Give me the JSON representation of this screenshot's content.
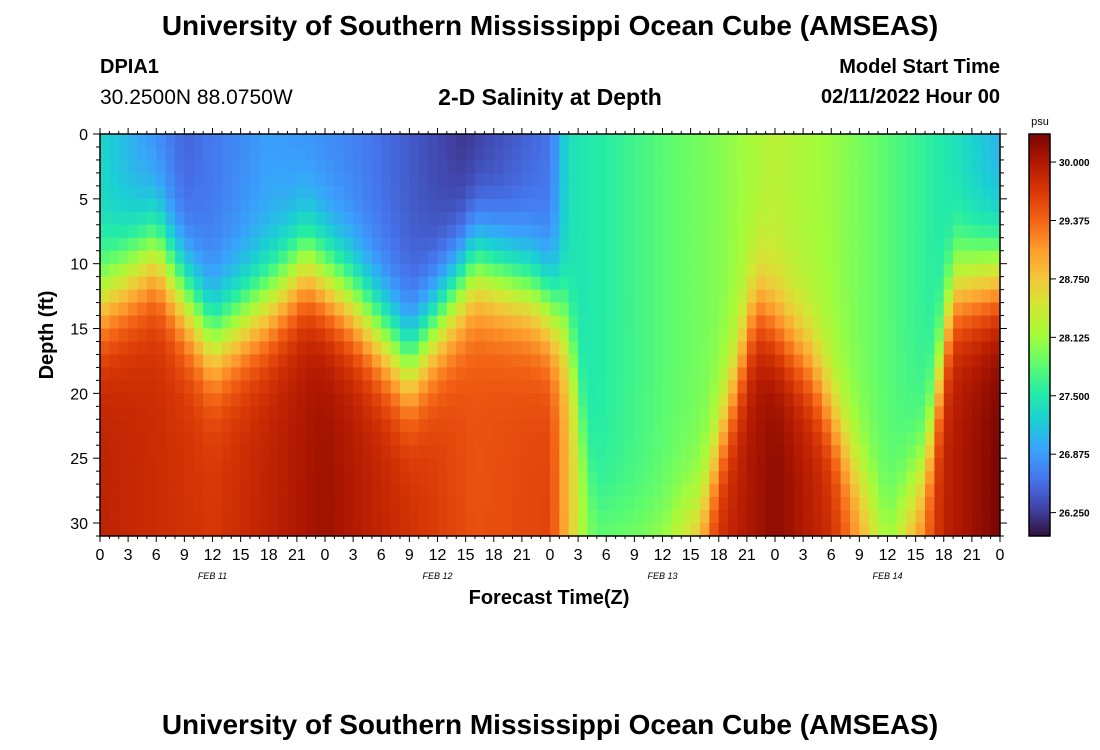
{
  "header": {
    "title": "University of Southern Mississippi Ocean Cube (AMSEAS)",
    "station": "DPIA1",
    "location": "30.2500N  88.0750W",
    "subtitle": "2-D Salinity at Depth",
    "model_start_label": "Model Start Time",
    "model_start_value": "02/11/2022 Hour 00"
  },
  "footer": {
    "title": "University of Southern Mississippi Ocean Cube (AMSEAS)"
  },
  "chart_data": {
    "type": "heatmap",
    "title": "2-D Salinity at Depth",
    "xlabel": "Forecast Time(Z)",
    "ylabel": "Depth (ft)",
    "colorbar_label": "psu",
    "x_range": [
      0,
      96
    ],
    "x_step_hours": 3,
    "x_tick_labels": [
      "0",
      "3",
      "6",
      "9",
      "12",
      "15",
      "18",
      "21",
      "0",
      "3",
      "6",
      "9",
      "12",
      "15",
      "18",
      "21",
      "0",
      "3",
      "6",
      "9",
      "12",
      "15",
      "18",
      "21",
      "0",
      "3",
      "6",
      "9",
      "12",
      "15",
      "18",
      "21",
      "0"
    ],
    "date_labels": [
      {
        "label": "FEB 11",
        "hour": 12
      },
      {
        "label": "FEB 12",
        "hour": 36
      },
      {
        "label": "FEB 13",
        "hour": 60
      },
      {
        "label": "FEB 14",
        "hour": 84
      }
    ],
    "y_range": [
      0,
      31
    ],
    "y_ticks": [
      0,
      5,
      10,
      15,
      20,
      25,
      30
    ],
    "color_range": [
      26.0,
      30.3
    ],
    "colorbar_ticks": [
      "26.250",
      "26.875",
      "27.500",
      "28.125",
      "28.750",
      "29.375",
      "30.000"
    ],
    "colormap": [
      "#30123b",
      "#4145ab",
      "#4675ed",
      "#39a2fc",
      "#1bcfd4",
      "#24eca6",
      "#61fc6c",
      "#a4fc3b",
      "#d1e834",
      "#f3c63a",
      "#fe9b2d",
      "#f36315",
      "#d93806",
      "#b11901",
      "#7a0402"
    ],
    "halocline_depth_ft": [
      {
        "hour": 0,
        "depth": 13
      },
      {
        "hour": 6,
        "depth": 9
      },
      {
        "hour": 12,
        "depth": 16
      },
      {
        "hour": 18,
        "depth": 13
      },
      {
        "hour": 22,
        "depth": 10
      },
      {
        "hour": 27,
        "depth": 13
      },
      {
        "hour": 33,
        "depth": 18
      },
      {
        "hour": 40,
        "depth": 10
      },
      {
        "hour": 46,
        "depth": 12
      },
      {
        "hour": 50,
        "depth": 15
      },
      {
        "hour": 53,
        "depth": 30
      },
      {
        "hour": 58,
        "depth": 31
      },
      {
        "hour": 64,
        "depth": 30
      },
      {
        "hour": 70,
        "depth": 13
      },
      {
        "hour": 76,
        "depth": 18
      },
      {
        "hour": 80,
        "depth": 25
      },
      {
        "hour": 84,
        "depth": 31
      },
      {
        "hour": 88,
        "depth": 26
      },
      {
        "hour": 91,
        "depth": 12
      },
      {
        "hour": 96,
        "depth": 11
      }
    ],
    "surface_salinity_psu": [
      {
        "hour": 0,
        "value": 27.3
      },
      {
        "hour": 9,
        "value": 26.5
      },
      {
        "hour": 18,
        "value": 26.9
      },
      {
        "hour": 27,
        "value": 26.7
      },
      {
        "hour": 39,
        "value": 26.2
      },
      {
        "hour": 48,
        "value": 26.6
      },
      {
        "hour": 50,
        "value": 27.4
      },
      {
        "hour": 60,
        "value": 27.8
      },
      {
        "hour": 66,
        "value": 28.0
      },
      {
        "hour": 72,
        "value": 28.3
      },
      {
        "hour": 78,
        "value": 28.1
      },
      {
        "hour": 84,
        "value": 27.8
      },
      {
        "hour": 90,
        "value": 27.5
      },
      {
        "hour": 96,
        "value": 27.0
      }
    ],
    "bottom_salinity_psu": [
      {
        "hour": 0,
        "value": 29.9
      },
      {
        "hour": 12,
        "value": 29.7
      },
      {
        "hour": 24,
        "value": 30.1
      },
      {
        "hour": 32,
        "value": 29.8
      },
      {
        "hour": 40,
        "value": 29.5
      },
      {
        "hour": 48,
        "value": 29.6
      },
      {
        "hour": 52,
        "value": 28.0
      },
      {
        "hour": 56,
        "value": 28.1
      },
      {
        "hour": 60,
        "value": 28.3
      },
      {
        "hour": 66,
        "value": 29.8
      },
      {
        "hour": 72,
        "value": 30.2
      },
      {
        "hour": 78,
        "value": 29.8
      },
      {
        "hour": 84,
        "value": 28.4
      },
      {
        "hour": 90,
        "value": 29.9
      },
      {
        "hour": 96,
        "value": 30.3
      }
    ]
  }
}
